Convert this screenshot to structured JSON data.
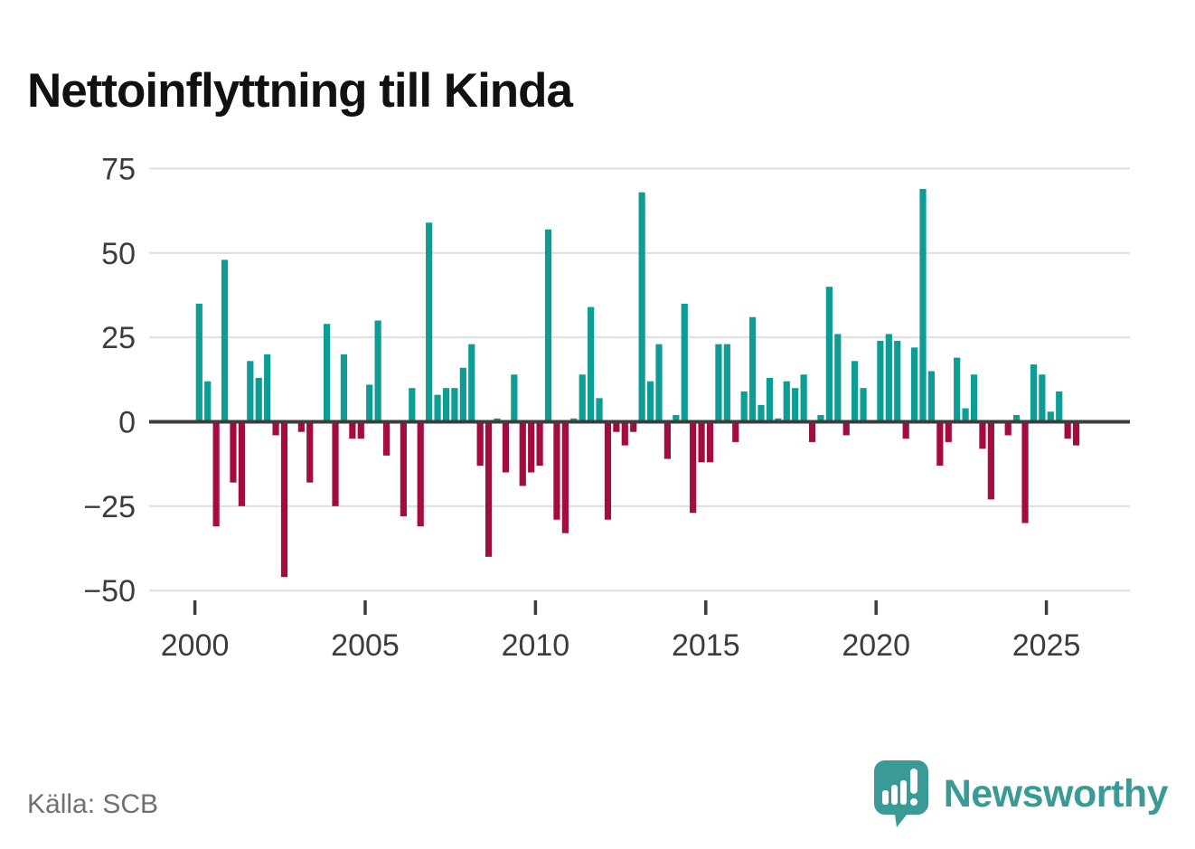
{
  "title": "Nettoinflyttning till Kinda",
  "footer": {
    "source": "Källa: SCB",
    "logo_text": "Newsworthy"
  },
  "colors": {
    "positive": "#0d9d95",
    "negative": "#a40b3f",
    "zero_line": "#3d3d3d",
    "gridline": "#dedede",
    "axis_text": "#3c3c3c",
    "title_text": "#111111",
    "source_text": "#707070",
    "logo_teal": "#3a9a96"
  },
  "chart_data": {
    "type": "bar",
    "title": "Nettoinflyttning till Kinda",
    "frequency": "quarterly",
    "x_start": "2000Q1",
    "x_end": "2025Q4",
    "values": [
      35,
      12,
      -31,
      48,
      -18,
      -25,
      18,
      13,
      20,
      -4,
      -46,
      0,
      -3,
      -18,
      0,
      29,
      -25,
      20,
      -5,
      -5,
      11,
      30,
      -10,
      0,
      -28,
      10,
      -31,
      59,
      8,
      10,
      10,
      16,
      23,
      -13,
      -40,
      1,
      -15,
      14,
      -19,
      -15,
      -13,
      57,
      -29,
      -33,
      1,
      14,
      34,
      7,
      -29,
      -3,
      -7,
      -3,
      68,
      12,
      23,
      -11,
      2,
      35,
      -27,
      -12,
      -12,
      23,
      23,
      -6,
      9,
      31,
      5,
      13,
      1,
      12,
      10,
      14,
      -6,
      2,
      40,
      26,
      -4,
      18,
      10,
      0,
      24,
      26,
      24,
      -5,
      22,
      69,
      15,
      -13,
      -6,
      19,
      4,
      14,
      -8,
      -23,
      0,
      -4,
      2,
      -30,
      17,
      14,
      3,
      9,
      -5,
      -7
    ],
    "ylim": [
      -50,
      75
    ],
    "grid": "horizontal",
    "legend": "none",
    "yticks": [
      {
        "v": 75,
        "label": "75"
      },
      {
        "v": 50,
        "label": "50"
      },
      {
        "v": 25,
        "label": "25"
      },
      {
        "v": 0,
        "label": "0"
      },
      {
        "v": -25,
        "label": "−25"
      },
      {
        "v": -50,
        "label": "−50"
      }
    ],
    "xticks": [
      {
        "year": 2000,
        "label": "2000"
      },
      {
        "year": 2005,
        "label": "2005"
      },
      {
        "year": 2010,
        "label": "2010"
      },
      {
        "year": 2015,
        "label": "2015"
      },
      {
        "year": 2020,
        "label": "2020"
      },
      {
        "year": 2025,
        "label": "2025"
      }
    ]
  }
}
